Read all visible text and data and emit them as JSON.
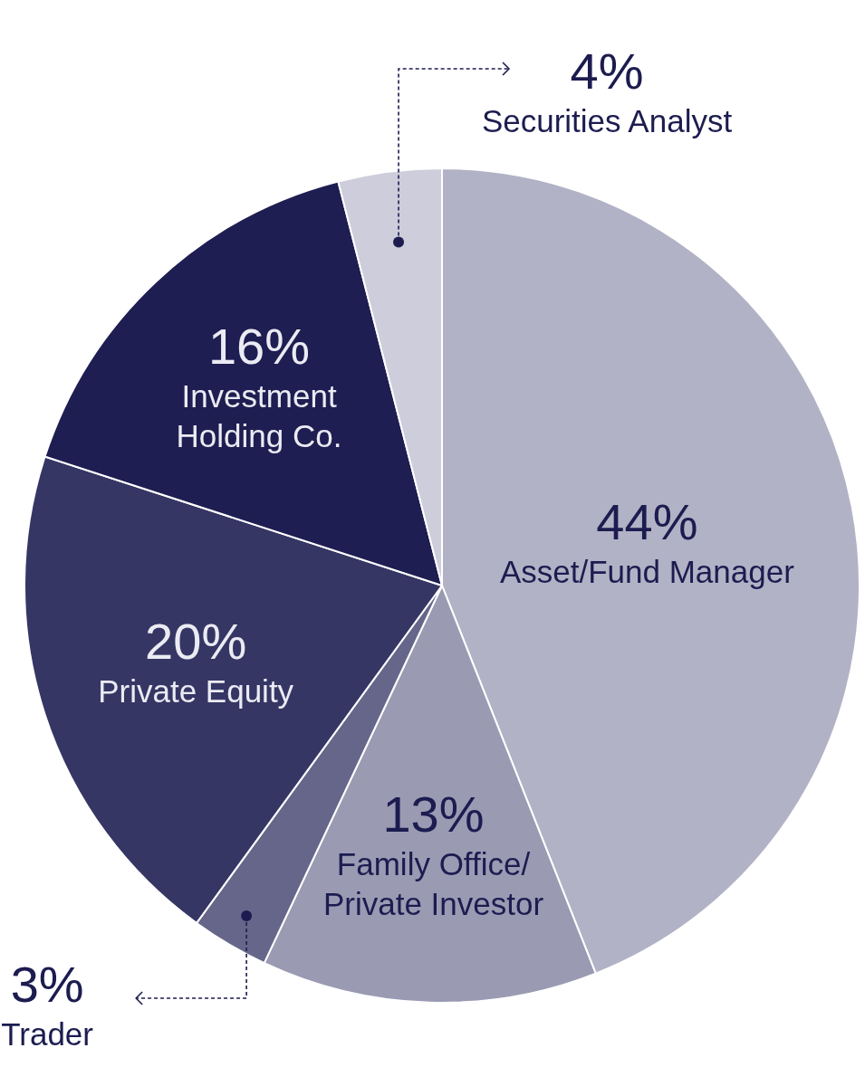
{
  "chart_data": {
    "type": "pie",
    "categories": [
      "Asset/Fund Manager",
      "Family Office/\nPrivate Investor",
      "Trader",
      "Private Equity",
      "Investment\nHolding Co.",
      "Securities Analyst"
    ],
    "values": [
      44,
      13,
      3,
      20,
      16,
      4
    ],
    "value_labels": [
      "44%",
      "13%",
      "3%",
      "20%",
      "16%",
      "4%"
    ],
    "colors": [
      "#b2b2c6",
      "#9a9ab3",
      "#66668a",
      "#363665",
      "#1e1e52",
      "#cdcddb"
    ]
  }
}
